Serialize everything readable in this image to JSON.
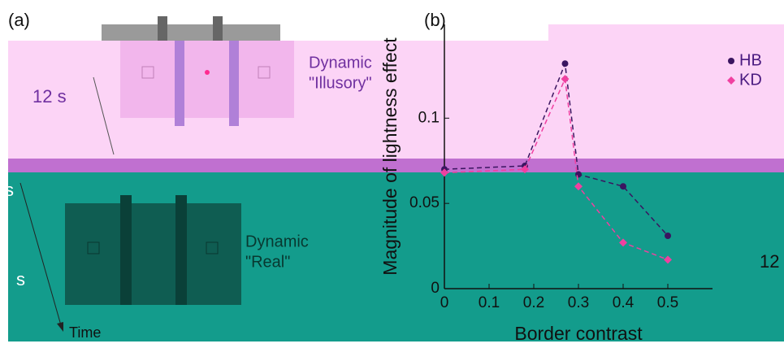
{
  "panel_a": {
    "label": "(a)",
    "duration": "12 s",
    "fragments": [
      "s",
      "s"
    ],
    "conditions": [
      {
        "line1": "Dynamic",
        "line2": "\"Illusory\""
      },
      {
        "line1": "Dynamic",
        "line2": "\"Real\""
      }
    ],
    "time_label": "Time"
  },
  "panel_b_label": "(b)",
  "edge_fragment": "12",
  "chart_data": {
    "type": "line",
    "xlabel": "Border contrast",
    "ylabel": "Magnitude of lightness effect",
    "x": [
      0,
      0.18,
      0.27,
      0.3,
      0.4,
      0.5
    ],
    "series": [
      {
        "name": "HB",
        "color": "#3a1560",
        "marker": "circle",
        "values": [
          0.07,
          0.072,
          0.132,
          0.067,
          0.06,
          0.031
        ]
      },
      {
        "name": "KD",
        "color": "#f040a0",
        "marker": "diamond",
        "values": [
          0.068,
          0.07,
          0.123,
          0.06,
          0.027,
          0.017
        ]
      }
    ],
    "xlim": [
      0,
      0.6
    ],
    "ylim": [
      0,
      0.155
    ],
    "xticks": [
      0,
      0.1,
      0.2,
      0.3,
      0.4,
      0.5
    ],
    "yticks": [
      0,
      0.05,
      0.1
    ],
    "legend": "upper right"
  }
}
